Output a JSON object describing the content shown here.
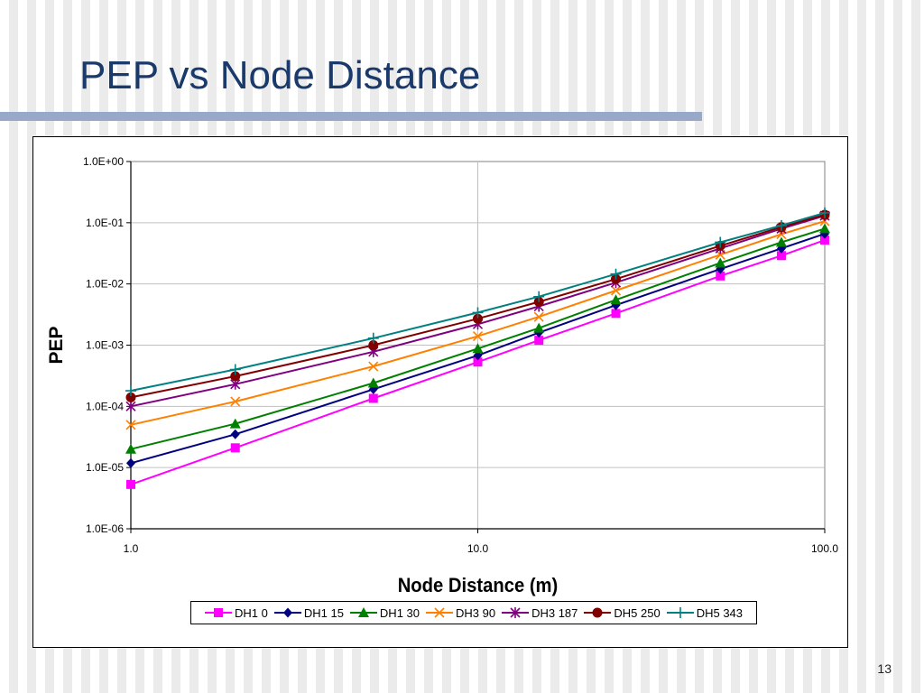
{
  "slide": {
    "title": "PEP vs Node Distance",
    "page_number": "13"
  },
  "colors": {
    "title": "#1a3a6b",
    "bar": "#98a8c8"
  },
  "chart_data": {
    "type": "line",
    "title": "",
    "xlabel": "Node Distance (m)",
    "ylabel": "PEP",
    "x_scale": "log",
    "y_scale": "log",
    "xlim": [
      1,
      100
    ],
    "ylim": [
      1e-06,
      1
    ],
    "x_ticks": [
      1,
      10,
      100
    ],
    "x_tick_labels": [
      "1.0",
      "10.0",
      "100.0"
    ],
    "y_ticks": [
      1,
      0.1,
      0.01,
      0.001,
      0.0001,
      1e-05,
      1e-06
    ],
    "y_tick_labels": [
      "1.0E+00",
      "1.0E-01",
      "1.0E-02",
      "1.0E-03",
      "1.0E-04",
      "1.0E-05",
      "1.0E-06"
    ],
    "grid": true,
    "legend_position": "bottom",
    "x": [
      1,
      2,
      5,
      10,
      15,
      25,
      50,
      75,
      100
    ],
    "series": [
      {
        "name": "DH1 0",
        "color": "#ff00ff",
        "marker": "square",
        "values": [
          5.3e-06,
          2.1e-05,
          0.000135,
          0.00053,
          0.0012,
          0.0033,
          0.0135,
          0.029,
          0.052
        ]
      },
      {
        "name": "DH1 15",
        "color": "#000080",
        "marker": "diamond",
        "values": [
          1.18e-05,
          3.5e-05,
          0.00019,
          0.00068,
          0.0016,
          0.0045,
          0.0175,
          0.038,
          0.066
        ]
      },
      {
        "name": "DH1 30",
        "color": "#008000",
        "marker": "triangle",
        "values": [
          2e-05,
          5.2e-05,
          0.00024,
          0.00088,
          0.0019,
          0.0055,
          0.022,
          0.048,
          0.08
        ]
      },
      {
        "name": "DH3 90",
        "color": "#ff8000",
        "marker": "x",
        "values": [
          5e-05,
          0.00012,
          0.00045,
          0.0014,
          0.0029,
          0.0078,
          0.03,
          0.065,
          0.106
        ]
      },
      {
        "name": "DH3 187",
        "color": "#800080",
        "marker": "star",
        "values": [
          0.0001,
          0.00023,
          0.00078,
          0.0022,
          0.0043,
          0.0105,
          0.038,
          0.08,
          0.13
        ]
      },
      {
        "name": "DH5 250",
        "color": "#800000",
        "marker": "circle",
        "values": [
          0.00014,
          0.00031,
          0.001,
          0.0027,
          0.0051,
          0.012,
          0.042,
          0.085,
          0.135
        ]
      },
      {
        "name": "DH5 343",
        "color": "#008080",
        "marker": "plus",
        "values": [
          0.00018,
          0.0004,
          0.0013,
          0.0034,
          0.0062,
          0.0145,
          0.048,
          0.09,
          0.145
        ]
      }
    ]
  }
}
